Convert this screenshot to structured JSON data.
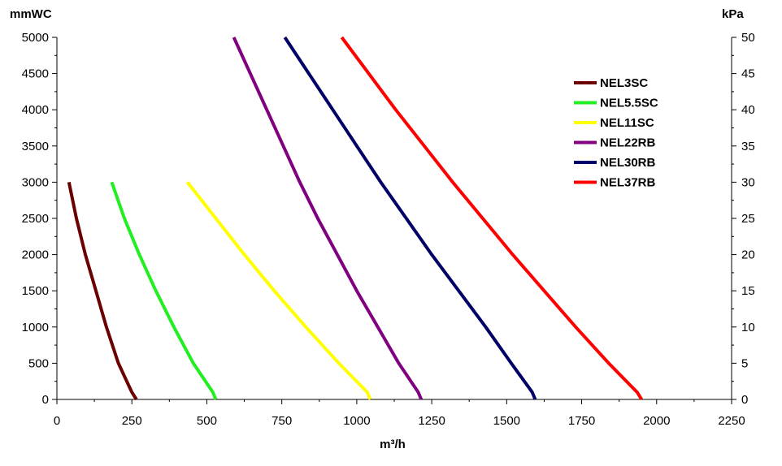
{
  "chart_data": {
    "type": "line",
    "title": "",
    "y_left_unit": "mmWC",
    "y_right_unit": "kPa",
    "xlabel": "m³/h",
    "xlim": [
      0,
      2250
    ],
    "ylim": [
      0,
      5000
    ],
    "y2lim": [
      0,
      50
    ],
    "x_ticks": [
      0,
      250,
      500,
      750,
      1000,
      1250,
      1500,
      1750,
      2000,
      2250
    ],
    "y_ticks": [
      0,
      500,
      1000,
      1500,
      2000,
      2500,
      3000,
      3500,
      4000,
      4500,
      5000
    ],
    "y2_ticks": [
      0,
      5,
      10,
      15,
      20,
      25,
      30,
      35,
      40,
      45,
      50
    ],
    "grid": false,
    "legend_position": "top-right",
    "series": [
      {
        "name": "NEL3SC",
        "color": "#6B0000",
        "points": [
          [
            40,
            3000
          ],
          [
            65,
            2500
          ],
          [
            95,
            2000
          ],
          [
            130,
            1500
          ],
          [
            165,
            1000
          ],
          [
            205,
            500
          ],
          [
            250,
            100
          ],
          [
            265,
            0
          ]
        ]
      },
      {
        "name": "NEL5.5SC",
        "color": "#22EE22",
        "points": [
          [
            183,
            3000
          ],
          [
            225,
            2500
          ],
          [
            275,
            2000
          ],
          [
            330,
            1500
          ],
          [
            390,
            1000
          ],
          [
            455,
            500
          ],
          [
            520,
            100
          ],
          [
            530,
            0
          ]
        ]
      },
      {
        "name": "NEL11SC",
        "color": "#FFFF00",
        "points": [
          [
            435,
            3000
          ],
          [
            530,
            2500
          ],
          [
            625,
            2000
          ],
          [
            725,
            1500
          ],
          [
            830,
            1000
          ],
          [
            940,
            500
          ],
          [
            1035,
            100
          ],
          [
            1045,
            0
          ]
        ]
      },
      {
        "name": "NEL22RB",
        "color": "#800080",
        "points": [
          [
            590,
            5000
          ],
          [
            645,
            4500
          ],
          [
            700,
            4000
          ],
          [
            755,
            3500
          ],
          [
            810,
            3000
          ],
          [
            870,
            2500
          ],
          [
            935,
            2000
          ],
          [
            1000,
            1500
          ],
          [
            1070,
            1000
          ],
          [
            1140,
            500
          ],
          [
            1205,
            100
          ],
          [
            1215,
            0
          ]
        ]
      },
      {
        "name": "NEL30RB",
        "color": "#000066",
        "points": [
          [
            760,
            5000
          ],
          [
            840,
            4500
          ],
          [
            920,
            4000
          ],
          [
            1000,
            3500
          ],
          [
            1080,
            3000
          ],
          [
            1165,
            2500
          ],
          [
            1250,
            2000
          ],
          [
            1340,
            1500
          ],
          [
            1430,
            1000
          ],
          [
            1515,
            500
          ],
          [
            1585,
            100
          ],
          [
            1595,
            0
          ]
        ]
      },
      {
        "name": "NEL37RB",
        "color": "#FF0000",
        "points": [
          [
            950,
            5000
          ],
          [
            1040,
            4500
          ],
          [
            1130,
            4000
          ],
          [
            1225,
            3500
          ],
          [
            1320,
            3000
          ],
          [
            1420,
            2500
          ],
          [
            1520,
            2000
          ],
          [
            1625,
            1500
          ],
          [
            1730,
            1000
          ],
          [
            1840,
            500
          ],
          [
            1935,
            100
          ],
          [
            1950,
            0
          ]
        ]
      }
    ]
  }
}
